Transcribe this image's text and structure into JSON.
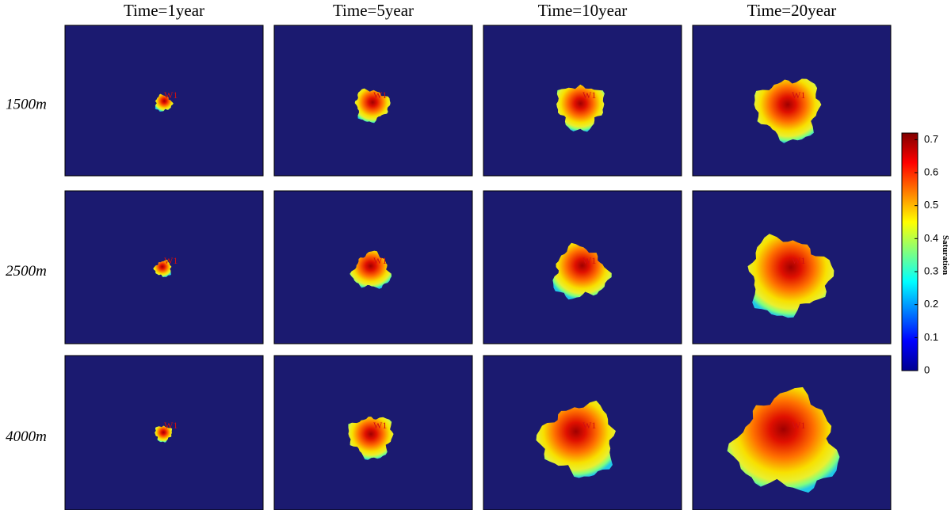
{
  "columns": [
    "Time=1year",
    "Time=5year",
    "Time=10year",
    "Time=20year"
  ],
  "rows": [
    "1500m",
    "2500m",
    "4000m"
  ],
  "well_label": "W1",
  "colorbar": {
    "label": "Saturation",
    "range": [
      0,
      0.72
    ],
    "ticks": [
      0,
      0.1,
      0.2,
      0.3,
      0.4,
      0.5,
      0.6,
      0.7
    ]
  }
}
